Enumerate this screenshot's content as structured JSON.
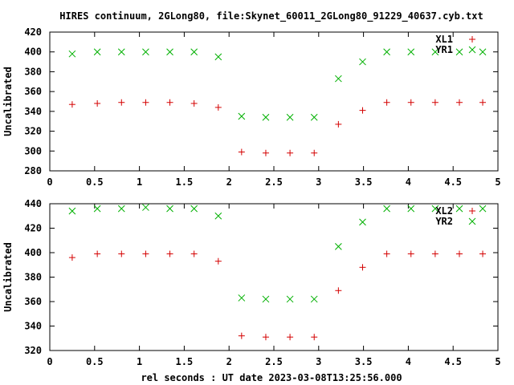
{
  "title": "HIRES continuum, 2GLong80, file:Skynet_60011_2GLong80_91229_40637.cyb.txt",
  "xlabel": "rel seconds : UT date 2023-03-08T13:25:56.000",
  "colors": {
    "plus": "#d40000",
    "cross": "#00b000",
    "axis": "#000000"
  },
  "chart_data": [
    {
      "type": "scatter",
      "ylabel": "Uncalibrated",
      "xlim": [
        0,
        5
      ],
      "ylim": [
        280,
        420
      ],
      "xticks": [
        "0",
        "0.5",
        "1",
        "1.5",
        "2",
        "2.5",
        "3",
        "3.5",
        "4",
        "4.5",
        "5"
      ],
      "yticks": [
        "280",
        "300",
        "320",
        "340",
        "360",
        "380",
        "400",
        "420"
      ],
      "legend_position": "top-right",
      "series": [
        {
          "name": "XL1",
          "marker": "plus",
          "x": [
            0.25,
            0.53,
            0.8,
            1.07,
            1.34,
            1.61,
            1.88,
            2.14,
            2.41,
            2.68,
            2.95,
            3.22,
            3.49,
            3.76,
            4.03,
            4.3,
            4.57,
            4.83
          ],
          "y": [
            347,
            348,
            349,
            349,
            349,
            348,
            344,
            299,
            298,
            298,
            298,
            327,
            341,
            349,
            349,
            349,
            349,
            349
          ]
        },
        {
          "name": "YR1",
          "marker": "cross",
          "x": [
            0.25,
            0.53,
            0.8,
            1.07,
            1.34,
            1.61,
            1.88,
            2.14,
            2.41,
            2.68,
            2.95,
            3.22,
            3.49,
            3.76,
            4.03,
            4.3,
            4.57,
            4.83
          ],
          "y": [
            398,
            400,
            400,
            400,
            400,
            400,
            395,
            335,
            334,
            334,
            334,
            373,
            390,
            400,
            400,
            400,
            400,
            400
          ]
        }
      ]
    },
    {
      "type": "scatter",
      "ylabel": "Uncalibrated",
      "xlim": [
        0,
        5
      ],
      "ylim": [
        320,
        440
      ],
      "xticks": [
        "0",
        "0.5",
        "1",
        "1.5",
        "2",
        "2.5",
        "3",
        "3.5",
        "4",
        "4.5",
        "5"
      ],
      "yticks": [
        "320",
        "340",
        "360",
        "380",
        "400",
        "420",
        "440"
      ],
      "legend_position": "top-right",
      "series": [
        {
          "name": "XL2",
          "marker": "plus",
          "x": [
            0.25,
            0.53,
            0.8,
            1.07,
            1.34,
            1.61,
            1.88,
            2.14,
            2.41,
            2.68,
            2.95,
            3.22,
            3.49,
            3.76,
            4.03,
            4.3,
            4.57,
            4.83
          ],
          "y": [
            396,
            399,
            399,
            399,
            399,
            399,
            393,
            332,
            331,
            331,
            331,
            369,
            388,
            399,
            399,
            399,
            399,
            399
          ]
        },
        {
          "name": "YR2",
          "marker": "cross",
          "x": [
            0.25,
            0.53,
            0.8,
            1.07,
            1.34,
            1.61,
            1.88,
            2.14,
            2.41,
            2.68,
            2.95,
            3.22,
            3.49,
            3.76,
            4.03,
            4.3,
            4.57,
            4.83
          ],
          "y": [
            434,
            436,
            436,
            437,
            436,
            436,
            430,
            363,
            362,
            362,
            362,
            405,
            425,
            436,
            436,
            436,
            436,
            436
          ]
        }
      ]
    }
  ]
}
